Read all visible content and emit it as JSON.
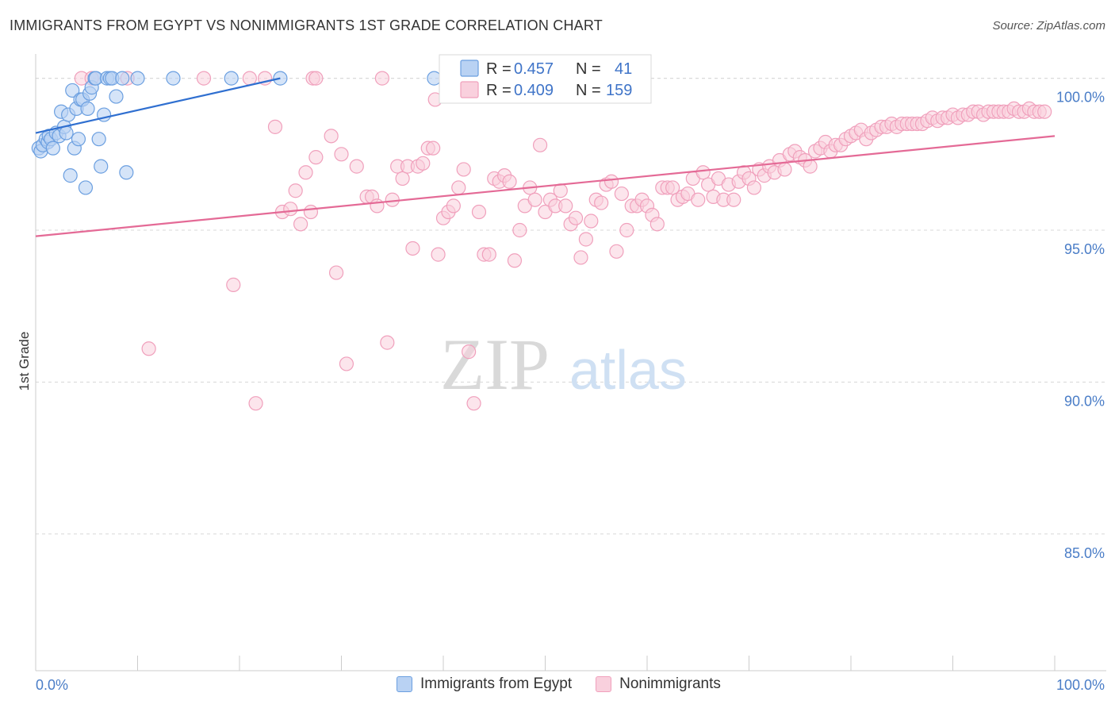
{
  "title": "IMMIGRANTS FROM EGYPT VS NONIMMIGRANTS 1ST GRADE CORRELATION CHART",
  "source": "Source: ZipAtlas.com",
  "watermark": {
    "zip": "ZIP",
    "atlas": "atlas"
  },
  "legend": {
    "series": [
      {
        "r_label": "R =",
        "r_value": "0.457",
        "n_label": "N =",
        "n_value": "41"
      },
      {
        "r_label": "R =",
        "r_value": "0.409",
        "n_label": "N =",
        "n_value": "159"
      }
    ]
  },
  "bottom_legend": [
    "Immigrants from Egypt",
    "Nonimmigrants"
  ],
  "chart_data": {
    "type": "scatter",
    "title": "IMMIGRANTS FROM EGYPT VS NONIMMIGRANTS 1ST GRADE CORRELATION CHART",
    "xlabel": "",
    "ylabel": "1st Grade",
    "xlim": [
      0,
      100
    ],
    "ylim": [
      80.5,
      100.8
    ],
    "x_tick_labels": [
      "0.0%",
      "100.0%"
    ],
    "y_ticks": [
      85,
      90,
      95,
      100
    ],
    "y_tick_labels": [
      "85.0%",
      "90.0%",
      "95.0%",
      "100.0%"
    ],
    "grid": "horizontal dashed",
    "series": [
      {
        "name": "Immigrants from Egypt",
        "color": "#6b9fe0",
        "R": 0.457,
        "N": 41,
        "trend": {
          "x": [
            0,
            24
          ],
          "y": [
            98.2,
            100.0
          ]
        },
        "points": [
          [
            0.3,
            97.7
          ],
          [
            0.5,
            97.6
          ],
          [
            0.7,
            97.8
          ],
          [
            1.0,
            98.0
          ],
          [
            1.2,
            97.9
          ],
          [
            1.3,
            98.1
          ],
          [
            1.5,
            98.0
          ],
          [
            1.7,
            97.7
          ],
          [
            2.0,
            98.2
          ],
          [
            2.3,
            98.1
          ],
          [
            2.5,
            98.9
          ],
          [
            2.8,
            98.4
          ],
          [
            3.0,
            98.2
          ],
          [
            3.2,
            98.8
          ],
          [
            3.4,
            96.8
          ],
          [
            3.6,
            99.6
          ],
          [
            3.8,
            97.7
          ],
          [
            4.0,
            99.0
          ],
          [
            4.2,
            98.0
          ],
          [
            4.4,
            99.3
          ],
          [
            4.6,
            99.3
          ],
          [
            4.9,
            96.4
          ],
          [
            5.1,
            99.0
          ],
          [
            5.3,
            99.5
          ],
          [
            5.5,
            99.7
          ],
          [
            5.8,
            100.0
          ],
          [
            5.9,
            100.0
          ],
          [
            6.2,
            98.0
          ],
          [
            6.4,
            97.1
          ],
          [
            6.7,
            98.8
          ],
          [
            7.0,
            100.0
          ],
          [
            7.3,
            100.0
          ],
          [
            7.5,
            100.0
          ],
          [
            7.9,
            99.4
          ],
          [
            8.5,
            100.0
          ],
          [
            8.9,
            96.9
          ],
          [
            10.0,
            100.0
          ],
          [
            13.5,
            100.0
          ],
          [
            19.2,
            100.0
          ],
          [
            24.0,
            100.0
          ],
          [
            39.1,
            100.0
          ]
        ]
      },
      {
        "name": "Nonimmigrants",
        "color": "#f0a0bc",
        "R": 0.409,
        "N": 159,
        "trend": {
          "x": [
            0,
            100
          ],
          "y": [
            94.8,
            98.1
          ]
        },
        "points": [
          [
            4.5,
            100.0
          ],
          [
            5.5,
            100.0
          ],
          [
            9.0,
            100.0
          ],
          [
            16.5,
            100.0
          ],
          [
            21.0,
            100.0
          ],
          [
            22.5,
            100.0
          ],
          [
            27.2,
            100.0
          ],
          [
            27.5,
            100.0
          ],
          [
            34.0,
            100.0
          ],
          [
            39.2,
            99.3
          ],
          [
            11.1,
            91.1
          ],
          [
            19.4,
            93.2
          ],
          [
            21.6,
            89.3
          ],
          [
            23.5,
            98.4
          ],
          [
            24.2,
            95.6
          ],
          [
            25.0,
            95.7
          ],
          [
            25.5,
            96.3
          ],
          [
            26.0,
            95.2
          ],
          [
            26.5,
            96.9
          ],
          [
            27.0,
            95.6
          ],
          [
            27.5,
            97.4
          ],
          [
            29.0,
            98.1
          ],
          [
            29.5,
            93.6
          ],
          [
            30.0,
            97.5
          ],
          [
            30.5,
            90.6
          ],
          [
            31.5,
            97.1
          ],
          [
            32.5,
            96.1
          ],
          [
            33.0,
            96.1
          ],
          [
            33.5,
            95.8
          ],
          [
            34.5,
            91.3
          ],
          [
            35.0,
            96.0
          ],
          [
            35.5,
            97.1
          ],
          [
            36.0,
            96.7
          ],
          [
            36.5,
            97.1
          ],
          [
            37.0,
            94.4
          ],
          [
            37.5,
            97.1
          ],
          [
            38.0,
            97.2
          ],
          [
            38.5,
            97.7
          ],
          [
            39.0,
            97.7
          ],
          [
            39.5,
            94.2
          ],
          [
            40.0,
            95.4
          ],
          [
            40.5,
            95.6
          ],
          [
            41.0,
            95.8
          ],
          [
            41.5,
            96.4
          ],
          [
            42.0,
            97.0
          ],
          [
            42.5,
            91.0
          ],
          [
            43.0,
            89.3
          ],
          [
            43.5,
            95.6
          ],
          [
            44.0,
            94.2
          ],
          [
            44.5,
            94.2
          ],
          [
            45.0,
            96.7
          ],
          [
            45.5,
            96.6
          ],
          [
            46.0,
            96.8
          ],
          [
            46.5,
            96.6
          ],
          [
            47.0,
            94.0
          ],
          [
            47.5,
            95.0
          ],
          [
            48.0,
            95.8
          ],
          [
            48.5,
            96.4
          ],
          [
            49.0,
            96.0
          ],
          [
            49.5,
            97.8
          ],
          [
            50.0,
            95.6
          ],
          [
            50.5,
            96.0
          ],
          [
            51.0,
            95.8
          ],
          [
            51.5,
            96.3
          ],
          [
            52.0,
            95.8
          ],
          [
            52.5,
            95.2
          ],
          [
            53.0,
            95.4
          ],
          [
            53.5,
            94.1
          ],
          [
            54.0,
            94.7
          ],
          [
            54.5,
            95.3
          ],
          [
            55.0,
            96.0
          ],
          [
            55.5,
            95.9
          ],
          [
            56.0,
            96.5
          ],
          [
            56.5,
            96.6
          ],
          [
            57.0,
            94.3
          ],
          [
            57.5,
            96.2
          ],
          [
            58.0,
            95.0
          ],
          [
            58.5,
            95.8
          ],
          [
            59.0,
            95.8
          ],
          [
            59.5,
            96.0
          ],
          [
            60.0,
            95.8
          ],
          [
            60.5,
            95.5
          ],
          [
            61.0,
            95.2
          ],
          [
            61.5,
            96.4
          ],
          [
            62.0,
            96.4
          ],
          [
            62.5,
            96.4
          ],
          [
            63.0,
            96.0
          ],
          [
            63.5,
            96.1
          ],
          [
            64.0,
            96.2
          ],
          [
            64.5,
            96.7
          ],
          [
            65.0,
            96.0
          ],
          [
            65.5,
            96.9
          ],
          [
            66.0,
            96.5
          ],
          [
            66.5,
            96.1
          ],
          [
            67.0,
            96.7
          ],
          [
            67.5,
            96.0
          ],
          [
            68.0,
            96.5
          ],
          [
            68.5,
            96.0
          ],
          [
            69.0,
            96.6
          ],
          [
            69.5,
            96.9
          ],
          [
            70.0,
            96.7
          ],
          [
            70.5,
            96.4
          ],
          [
            71.0,
            97.0
          ],
          [
            71.5,
            96.8
          ],
          [
            72.0,
            97.1
          ],
          [
            72.5,
            96.9
          ],
          [
            73.0,
            97.3
          ],
          [
            73.5,
            97.0
          ],
          [
            74.0,
            97.5
          ],
          [
            74.5,
            97.6
          ],
          [
            75.0,
            97.4
          ],
          [
            75.5,
            97.3
          ],
          [
            76.0,
            97.1
          ],
          [
            76.5,
            97.6
          ],
          [
            77.0,
            97.7
          ],
          [
            77.5,
            97.9
          ],
          [
            78.0,
            97.6
          ],
          [
            78.5,
            97.8
          ],
          [
            79.0,
            97.8
          ],
          [
            79.5,
            98.0
          ],
          [
            80.0,
            98.1
          ],
          [
            80.5,
            98.2
          ],
          [
            81.0,
            98.3
          ],
          [
            81.5,
            98.0
          ],
          [
            82.0,
            98.2
          ],
          [
            82.5,
            98.3
          ],
          [
            83.0,
            98.4
          ],
          [
            83.5,
            98.4
          ],
          [
            84.0,
            98.5
          ],
          [
            84.5,
            98.4
          ],
          [
            85.0,
            98.5
          ],
          [
            85.5,
            98.5
          ],
          [
            86.0,
            98.5
          ],
          [
            86.5,
            98.5
          ],
          [
            87.0,
            98.5
          ],
          [
            87.5,
            98.6
          ],
          [
            88.0,
            98.7
          ],
          [
            88.5,
            98.6
          ],
          [
            89.0,
            98.7
          ],
          [
            89.5,
            98.7
          ],
          [
            90.0,
            98.8
          ],
          [
            90.5,
            98.7
          ],
          [
            91.0,
            98.8
          ],
          [
            91.5,
            98.8
          ],
          [
            92.0,
            98.9
          ],
          [
            92.5,
            98.9
          ],
          [
            93.0,
            98.8
          ],
          [
            93.5,
            98.9
          ],
          [
            94.0,
            98.9
          ],
          [
            94.5,
            98.9
          ],
          [
            95.0,
            98.9
          ],
          [
            95.5,
            98.9
          ],
          [
            96.0,
            99.0
          ],
          [
            96.5,
            98.9
          ],
          [
            97.0,
            98.9
          ],
          [
            97.5,
            99.0
          ],
          [
            98.0,
            98.9
          ],
          [
            98.5,
            98.9
          ],
          [
            99.0,
            98.9
          ]
        ]
      }
    ]
  },
  "colors": {
    "blue_stroke": "#6b9fe0",
    "blue_fill": "#b9d2f3",
    "blue_line": "#2f6fd0",
    "pink_stroke": "#f0a0bc",
    "pink_fill": "#f9d0dd",
    "pink_line": "#e46a96",
    "tick_text": "#4a7dc7",
    "grid": "#d8d8d8"
  }
}
